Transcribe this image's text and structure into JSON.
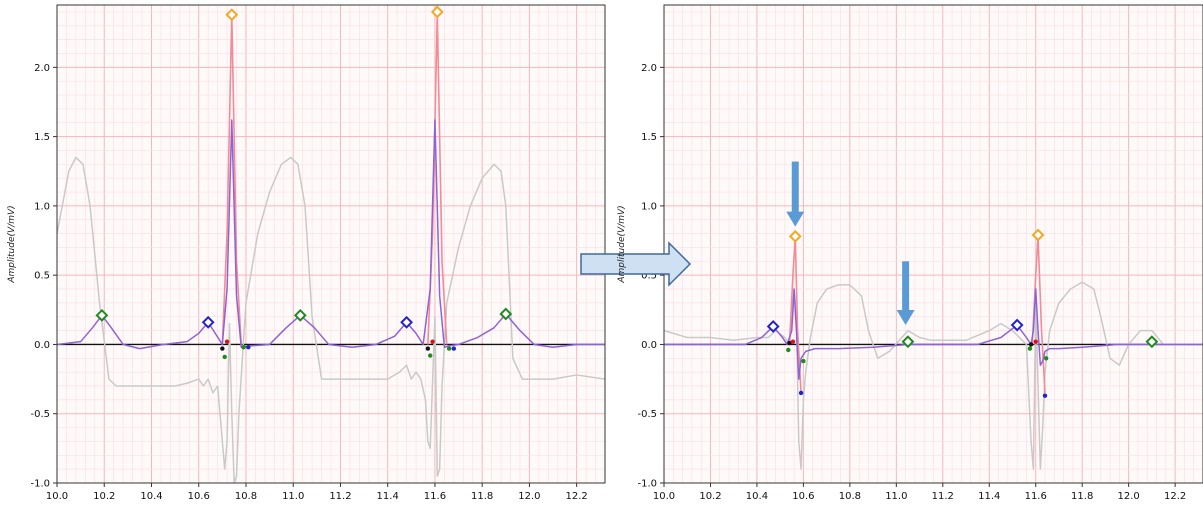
{
  "colors": {
    "grid_major": "#f5b6bd",
    "grid_minor": "#fbe0e3",
    "baseline": "#111111",
    "raw_signal": "#c9c9c9",
    "filtered_signal": "#8f63d6",
    "qrs_highlight": "#f28b95",
    "t_wave_marker": "#1f8a1f",
    "p_wave_marker": "#2222cc",
    "r_peak_marker": "#f5a623",
    "annotation_arrow": "#5b9bd5"
  },
  "icons": {
    "transition_arrow": "right-arrow-icon",
    "annotation_arrows": "down-arrow-icon"
  },
  "chart_data": [
    {
      "type": "line",
      "title": "",
      "xlabel": "",
      "ylabel": "Amplitude(V/mV)",
      "xlim": [
        10.0,
        12.32
      ],
      "ylim": [
        -1.0,
        2.45
      ],
      "x_ticks": [
        "10.0",
        "10.2",
        "10.4",
        "10.6",
        "10.8",
        "11.0",
        "11.2",
        "11.4",
        "11.6",
        "11.8",
        "12.0",
        "12.2"
      ],
      "y_ticks": [
        "-1.0",
        "-0.5",
        "0.0",
        "0.5",
        "1.0",
        "1.5",
        "2.0"
      ],
      "grid": true,
      "series": [
        {
          "role": "raw",
          "x": [
            10.0,
            10.05,
            10.08,
            10.11,
            10.14,
            10.18,
            10.22,
            10.25,
            10.3,
            10.4,
            10.5,
            10.55,
            10.6,
            10.62,
            10.64,
            10.66,
            10.68,
            10.7,
            10.71,
            10.72,
            10.73,
            10.74,
            10.75,
            10.76,
            10.77,
            10.8,
            10.85,
            10.9,
            10.95,
            10.99,
            11.02,
            11.05,
            11.08,
            11.12,
            11.2,
            11.3,
            11.4,
            11.45,
            11.48,
            11.5,
            11.52,
            11.54,
            11.56,
            11.57,
            11.58,
            11.6,
            11.61,
            11.62,
            11.63,
            11.65,
            11.7,
            11.75,
            11.8,
            11.85,
            11.88,
            11.9,
            11.93,
            11.97,
            12.0,
            12.1,
            12.2,
            12.32
          ],
          "y": [
            0.8,
            1.25,
            1.35,
            1.3,
            1.0,
            0.3,
            -0.25,
            -0.3,
            -0.3,
            -0.3,
            -0.3,
            -0.28,
            -0.25,
            -0.3,
            -0.25,
            -0.35,
            -0.3,
            -0.7,
            -0.9,
            -0.7,
            0.15,
            -0.5,
            -1.0,
            -0.95,
            -0.5,
            0.3,
            0.8,
            1.1,
            1.3,
            1.35,
            1.3,
            1.0,
            0.2,
            -0.25,
            -0.25,
            -0.25,
            -0.25,
            -0.2,
            -0.15,
            -0.25,
            -0.2,
            -0.25,
            -0.4,
            -0.7,
            -0.75,
            0.2,
            -0.95,
            -0.9,
            -0.3,
            0.3,
            0.7,
            1.0,
            1.2,
            1.3,
            1.25,
            1.0,
            -0.1,
            -0.25,
            -0.25,
            -0.25,
            -0.22,
            -0.25
          ]
        },
        {
          "role": "filtered",
          "x": [
            10.0,
            10.1,
            10.15,
            10.19,
            10.23,
            10.28,
            10.35,
            10.45,
            10.55,
            10.6,
            10.64,
            10.67,
            10.7,
            10.72,
            10.74,
            10.76,
            10.78,
            10.82,
            10.9,
            10.97,
            11.03,
            11.09,
            11.15,
            11.25,
            11.35,
            11.43,
            11.48,
            11.52,
            11.55,
            11.58,
            11.6,
            11.62,
            11.64,
            11.66,
            11.7,
            11.78,
            11.85,
            11.9,
            11.96,
            12.02,
            12.1,
            12.2,
            12.32
          ],
          "y": [
            0.0,
            0.02,
            0.12,
            0.21,
            0.12,
            0.0,
            -0.03,
            0.0,
            0.02,
            0.08,
            0.16,
            0.08,
            0.0,
            0.4,
            1.62,
            0.35,
            -0.02,
            -0.01,
            0.0,
            0.12,
            0.21,
            0.12,
            0.0,
            -0.02,
            0.0,
            0.06,
            0.16,
            0.08,
            0.0,
            0.4,
            1.62,
            0.35,
            -0.02,
            -0.01,
            0.0,
            0.05,
            0.12,
            0.22,
            0.1,
            0.0,
            -0.02,
            0.0,
            0.0
          ]
        },
        {
          "role": "qrs",
          "x": [
            10.7,
            10.72,
            10.74,
            10.76,
            10.78,
            11.57,
            11.59,
            11.61,
            11.63,
            11.65
          ],
          "y": [
            0.0,
            0.8,
            2.38,
            0.6,
            0.0,
            0.0,
            0.8,
            2.38,
            0.6,
            0.0
          ]
        }
      ],
      "markers": {
        "t_peaks": [
          {
            "x": 10.19,
            "y": 0.21
          },
          {
            "x": 11.03,
            "y": 0.21
          },
          {
            "x": 11.9,
            "y": 0.22
          }
        ],
        "p_peaks": [
          {
            "x": 10.64,
            "y": 0.16
          },
          {
            "x": 11.48,
            "y": 0.16
          }
        ],
        "r_peaks": [
          {
            "x": 10.74,
            "y": 2.38
          },
          {
            "x": 11.61,
            "y": 2.4
          }
        ],
        "q_points": [
          {
            "x": 10.7,
            "y": -0.03
          },
          {
            "x": 11.57,
            "y": -0.03
          }
        ],
        "s_points": [
          {
            "x": 10.81,
            "y": -0.02
          },
          {
            "x": 11.68,
            "y": -0.03
          }
        ],
        "onsets": [
          {
            "x": 10.71,
            "y": -0.09
          },
          {
            "x": 11.58,
            "y": -0.08
          }
        ],
        "offsets": [
          {
            "x": 10.79,
            "y": -0.02
          },
          {
            "x": 11.66,
            "y": -0.03
          }
        ],
        "qrs_points": [
          {
            "x": 10.72,
            "y": 0.02
          },
          {
            "x": 11.59,
            "y": 0.02
          }
        ]
      },
      "arrows": []
    },
    {
      "type": "line",
      "title": "",
      "xlabel": "",
      "ylabel": "Amplitude(V/mV)",
      "xlim": [
        10.0,
        12.32
      ],
      "ylim": [
        -1.0,
        2.45
      ],
      "x_ticks": [
        "10.0",
        "10.2",
        "10.4",
        "10.6",
        "10.8",
        "11.0",
        "11.2",
        "11.4",
        "11.6",
        "11.8",
        "12.0",
        "12.2"
      ],
      "y_ticks": [
        "-1.0",
        "-0.5",
        "0.0",
        "0.5",
        "1.0",
        "1.5",
        "2.0"
      ],
      "grid": true,
      "series": [
        {
          "role": "raw",
          "x": [
            10.0,
            10.1,
            10.2,
            10.3,
            10.4,
            10.45,
            10.48,
            10.52,
            10.54,
            10.56,
            10.57,
            10.58,
            10.59,
            10.6,
            10.61,
            10.63,
            10.66,
            10.7,
            10.75,
            10.8,
            10.85,
            10.88,
            10.92,
            10.97,
            11.05,
            11.1,
            11.15,
            11.2,
            11.3,
            11.4,
            11.45,
            11.5,
            11.53,
            11.56,
            11.58,
            11.59,
            11.6,
            11.61,
            11.62,
            11.63,
            11.64,
            11.66,
            11.7,
            11.75,
            11.8,
            11.85,
            11.88,
            11.92,
            11.96,
            12.0,
            12.05,
            12.1,
            12.15,
            12.2,
            12.32
          ],
          "y": [
            0.1,
            0.05,
            0.05,
            0.03,
            0.05,
            0.05,
            0.1,
            0.05,
            0.0,
            0.4,
            0.2,
            -0.7,
            -0.9,
            -0.4,
            -0.2,
            0.05,
            0.3,
            0.4,
            0.43,
            0.43,
            0.35,
            0.1,
            -0.1,
            -0.05,
            0.1,
            0.05,
            0.03,
            0.03,
            0.03,
            0.1,
            0.15,
            0.1,
            0.05,
            0.0,
            -0.7,
            -0.9,
            0.3,
            -0.3,
            -0.9,
            -0.6,
            -0.2,
            0.1,
            0.3,
            0.4,
            0.45,
            0.4,
            0.2,
            -0.1,
            -0.15,
            0.0,
            0.1,
            0.1,
            0.0,
            0.0,
            0.0
          ]
        },
        {
          "role": "filtered",
          "x": [
            10.0,
            10.2,
            10.35,
            10.42,
            10.47,
            10.51,
            10.53,
            10.55,
            10.56,
            10.57,
            10.58,
            10.59,
            10.61,
            10.65,
            10.75,
            10.9,
            11.05,
            11.2,
            11.35,
            11.45,
            11.52,
            11.56,
            11.58,
            11.59,
            11.6,
            11.61,
            11.62,
            11.63,
            11.64,
            11.66,
            11.7,
            11.8,
            11.95,
            12.1,
            12.32
          ],
          "y": [
            0.0,
            0.0,
            0.0,
            0.05,
            0.13,
            0.05,
            0.0,
            0.1,
            0.4,
            0.1,
            -0.25,
            -0.1,
            -0.05,
            -0.03,
            -0.03,
            -0.02,
            0.0,
            0.0,
            0.0,
            0.05,
            0.14,
            0.05,
            0.0,
            0.1,
            0.4,
            0.1,
            -0.15,
            -0.12,
            -0.05,
            -0.03,
            -0.03,
            -0.02,
            0.0,
            0.0,
            0.0
          ]
        },
        {
          "role": "qrs",
          "x": [
            10.54,
            10.555,
            10.565,
            10.575,
            10.59,
            11.585,
            11.6,
            11.61,
            11.625,
            11.64
          ],
          "y": [
            0.0,
            0.5,
            0.78,
            0.1,
            -0.35,
            0.0,
            0.5,
            0.78,
            0.1,
            -0.35
          ]
        }
      ],
      "markers": {
        "t_peaks": [
          {
            "x": 11.05,
            "y": 0.02
          },
          {
            "x": 12.1,
            "y": 0.02
          }
        ],
        "p_peaks": [
          {
            "x": 10.47,
            "y": 0.13
          },
          {
            "x": 11.52,
            "y": 0.14
          }
        ],
        "r_peaks": [
          {
            "x": 10.565,
            "y": 0.78
          },
          {
            "x": 11.61,
            "y": 0.79
          }
        ],
        "q_points": [
          {
            "x": 10.54,
            "y": 0.01
          },
          {
            "x": 11.58,
            "y": 0.0
          }
        ],
        "s_points": [
          {
            "x": 10.59,
            "y": -0.35
          },
          {
            "x": 11.64,
            "y": -0.37
          }
        ],
        "onsets": [
          {
            "x": 10.535,
            "y": -0.04
          },
          {
            "x": 11.575,
            "y": -0.03
          }
        ],
        "offsets": [
          {
            "x": 10.6,
            "y": -0.12
          },
          {
            "x": 11.645,
            "y": -0.1
          }
        ],
        "qrs_points": [
          {
            "x": 10.555,
            "y": 0.02
          },
          {
            "x": 11.6,
            "y": 0.02
          }
        ]
      },
      "arrows": [
        {
          "x": 10.565,
          "y_from": 1.32,
          "y_to": 0.85
        },
        {
          "x": 11.04,
          "y_from": 0.6,
          "y_to": 0.14
        }
      ]
    }
  ]
}
